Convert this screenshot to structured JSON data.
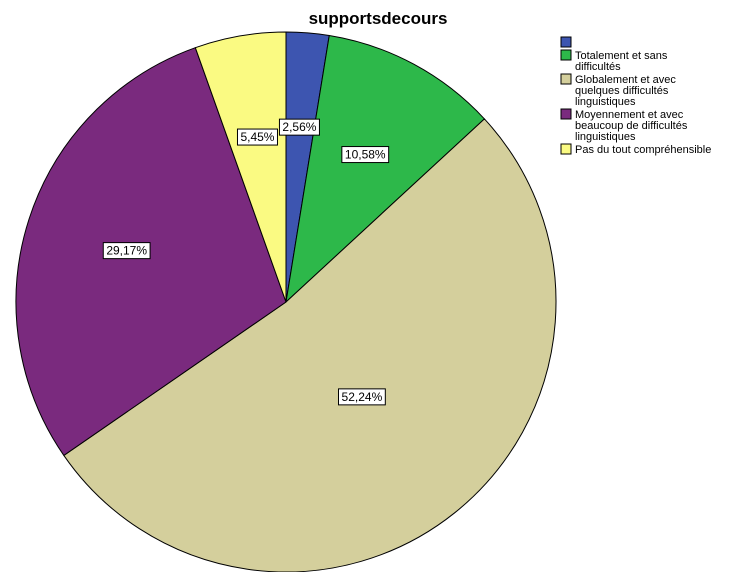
{
  "chart_data": {
    "type": "pie",
    "title": "supportsdecours",
    "categories": [
      "",
      "Totalement et sans difficultés",
      "Globalement et avec quelques difficultés linguistiques",
      "Moyennement et avec beaucoup de difficultés linguistiques",
      "Pas du tout compréhensible"
    ],
    "legend_lines": [
      [
        ""
      ],
      [
        "Totalement et sans",
        "difficultés"
      ],
      [
        "Globalement et avec",
        "quelques difficultés",
        "linguistiques"
      ],
      [
        "Moyennement et avec",
        "beaucoup de difficultés",
        "linguistiques"
      ],
      [
        "Pas du tout compréhensible"
      ]
    ],
    "values": [
      2.56,
      10.58,
      52.24,
      29.17,
      5.45
    ],
    "labels": [
      "2,56%",
      "10,58%",
      "52,24%",
      "29,17%",
      "5,45%"
    ],
    "colors": [
      "#3d55b0",
      "#2db84a",
      "#d4cf9c",
      "#7a2a7e",
      "#fafa82"
    ],
    "start_angle_deg": 0,
    "direction": "clockwise",
    "legend_position": "top-right"
  }
}
